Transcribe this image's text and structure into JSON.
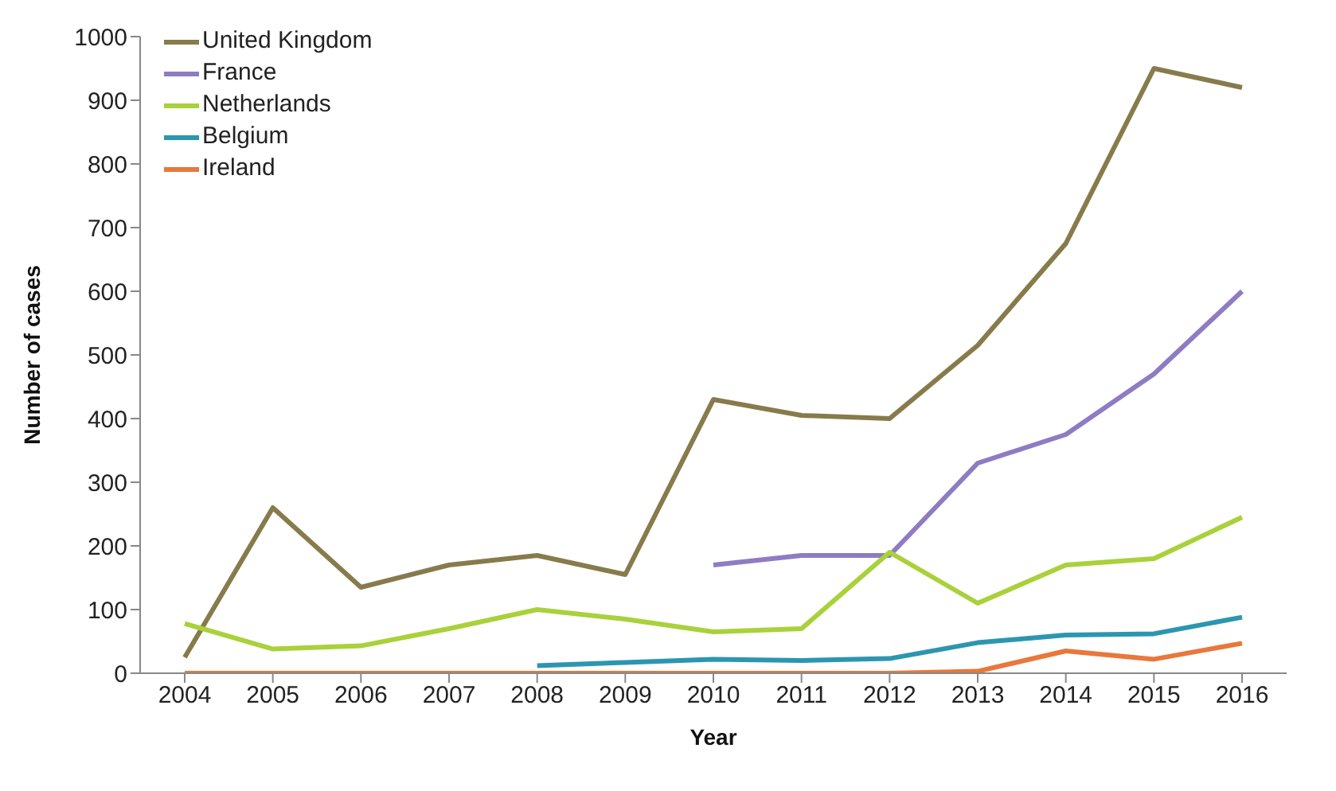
{
  "chart_data": {
    "type": "line",
    "xlabel": "Year",
    "ylabel": "Number of cases",
    "categories": [
      "2004",
      "2005",
      "2006",
      "2007",
      "2008",
      "2009",
      "2010",
      "2011",
      "2012",
      "2013",
      "2014",
      "2015",
      "2016"
    ],
    "series": [
      {
        "name": "United Kingdom",
        "color": "#877b4c",
        "values": [
          25,
          260,
          135,
          170,
          185,
          155,
          430,
          405,
          400,
          515,
          675,
          950,
          920
        ]
      },
      {
        "name": "France",
        "color": "#8e7cc3",
        "values": [
          null,
          null,
          null,
          null,
          null,
          null,
          170,
          185,
          185,
          330,
          375,
          470,
          600
        ]
      },
      {
        "name": "Netherlands",
        "color": "#a9d13a",
        "values": [
          78,
          38,
          43,
          70,
          100,
          85,
          65,
          70,
          190,
          110,
          170,
          180,
          245
        ]
      },
      {
        "name": "Belgium",
        "color": "#2c96b0",
        "values": [
          null,
          null,
          null,
          null,
          12,
          17,
          22,
          20,
          23,
          48,
          60,
          62,
          88
        ]
      },
      {
        "name": "Ireland",
        "color": "#e8783c",
        "values": [
          0,
          0,
          0,
          0,
          0,
          0,
          0,
          0,
          0,
          3,
          35,
          22,
          47
        ]
      }
    ],
    "ylim": [
      0,
      1000
    ],
    "yticks": [
      0,
      100,
      200,
      300,
      400,
      500,
      600,
      700,
      800,
      900,
      1000
    ],
    "grid": false,
    "legend": "top left",
    "marker": "none",
    "line_style": "solid"
  }
}
